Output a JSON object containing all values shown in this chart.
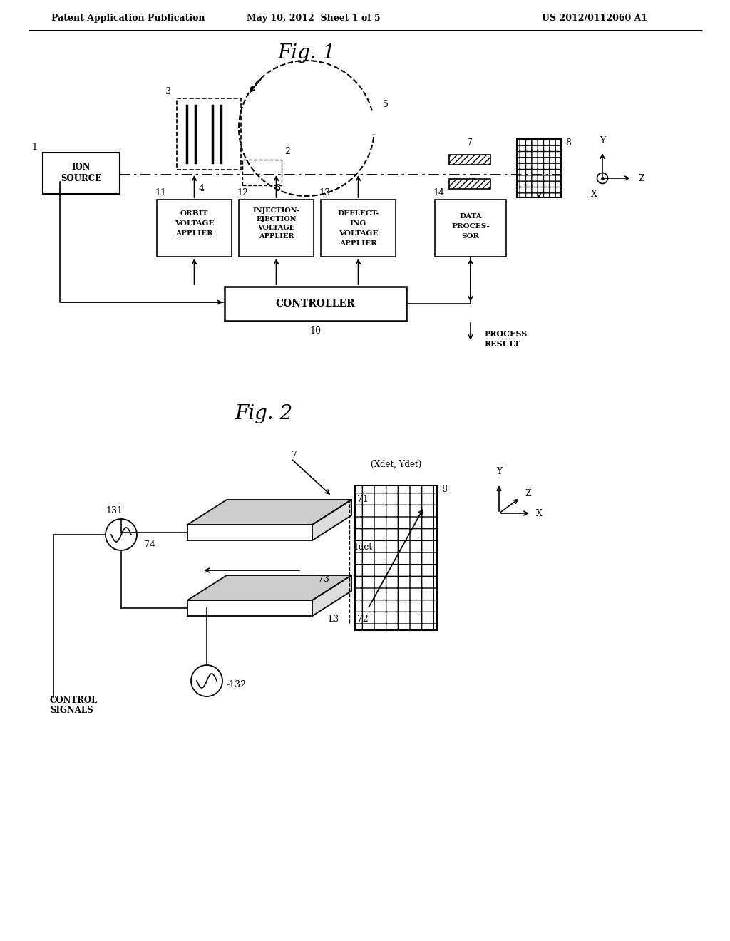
{
  "bg_color": "#ffffff",
  "header_left": "Patent Application Publication",
  "header_center": "May 10, 2012  Sheet 1 of 5",
  "header_right": "US 2012/0112060 A1",
  "fig1_title": "Fig. 1",
  "fig2_title": "Fig. 2"
}
